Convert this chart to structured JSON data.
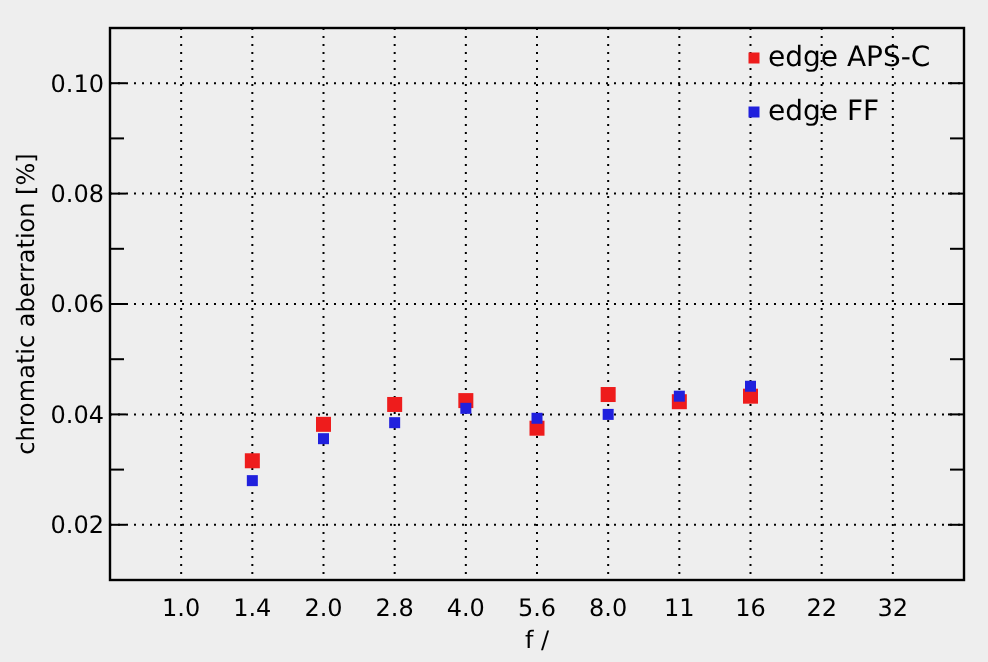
{
  "chart_data": {
    "type": "scatter",
    "xlabel": "f /",
    "ylabel": "chromatic aberration [%]",
    "categories": [
      "1.0",
      "1.4",
      "2.0",
      "2.8",
      "4.0",
      "5.6",
      "8.0",
      "11",
      "16",
      "22",
      "32"
    ],
    "series": [
      {
        "name": "edge APS-C",
        "color": "#ee1c1c",
        "values": [
          null,
          0.0316,
          0.0382,
          0.0418,
          0.0425,
          0.0375,
          0.0436,
          0.0423,
          0.0433,
          null,
          null
        ]
      },
      {
        "name": "edge FF",
        "color": "#2020dd",
        "values": [
          null,
          0.028,
          0.0356,
          0.0385,
          0.0411,
          0.0393,
          0.04,
          0.0433,
          0.0451,
          null,
          null
        ]
      }
    ],
    "ylim": [
      0.01,
      0.11
    ],
    "yticks": [
      {
        "value": 0.01,
        "label": null
      },
      {
        "value": 0.02,
        "label": "0.02"
      },
      {
        "value": 0.03,
        "label": null
      },
      {
        "value": 0.04,
        "label": "0.04"
      },
      {
        "value": 0.05,
        "label": null
      },
      {
        "value": 0.06,
        "label": "0.06"
      },
      {
        "value": 0.07,
        "label": null
      },
      {
        "value": 0.08,
        "label": "0.08"
      },
      {
        "value": 0.09,
        "label": null
      },
      {
        "value": 0.1,
        "label": "0.10"
      },
      {
        "value": 0.11,
        "label": null
      }
    ],
    "grid": true,
    "legend": "top right",
    "marker": "square"
  }
}
